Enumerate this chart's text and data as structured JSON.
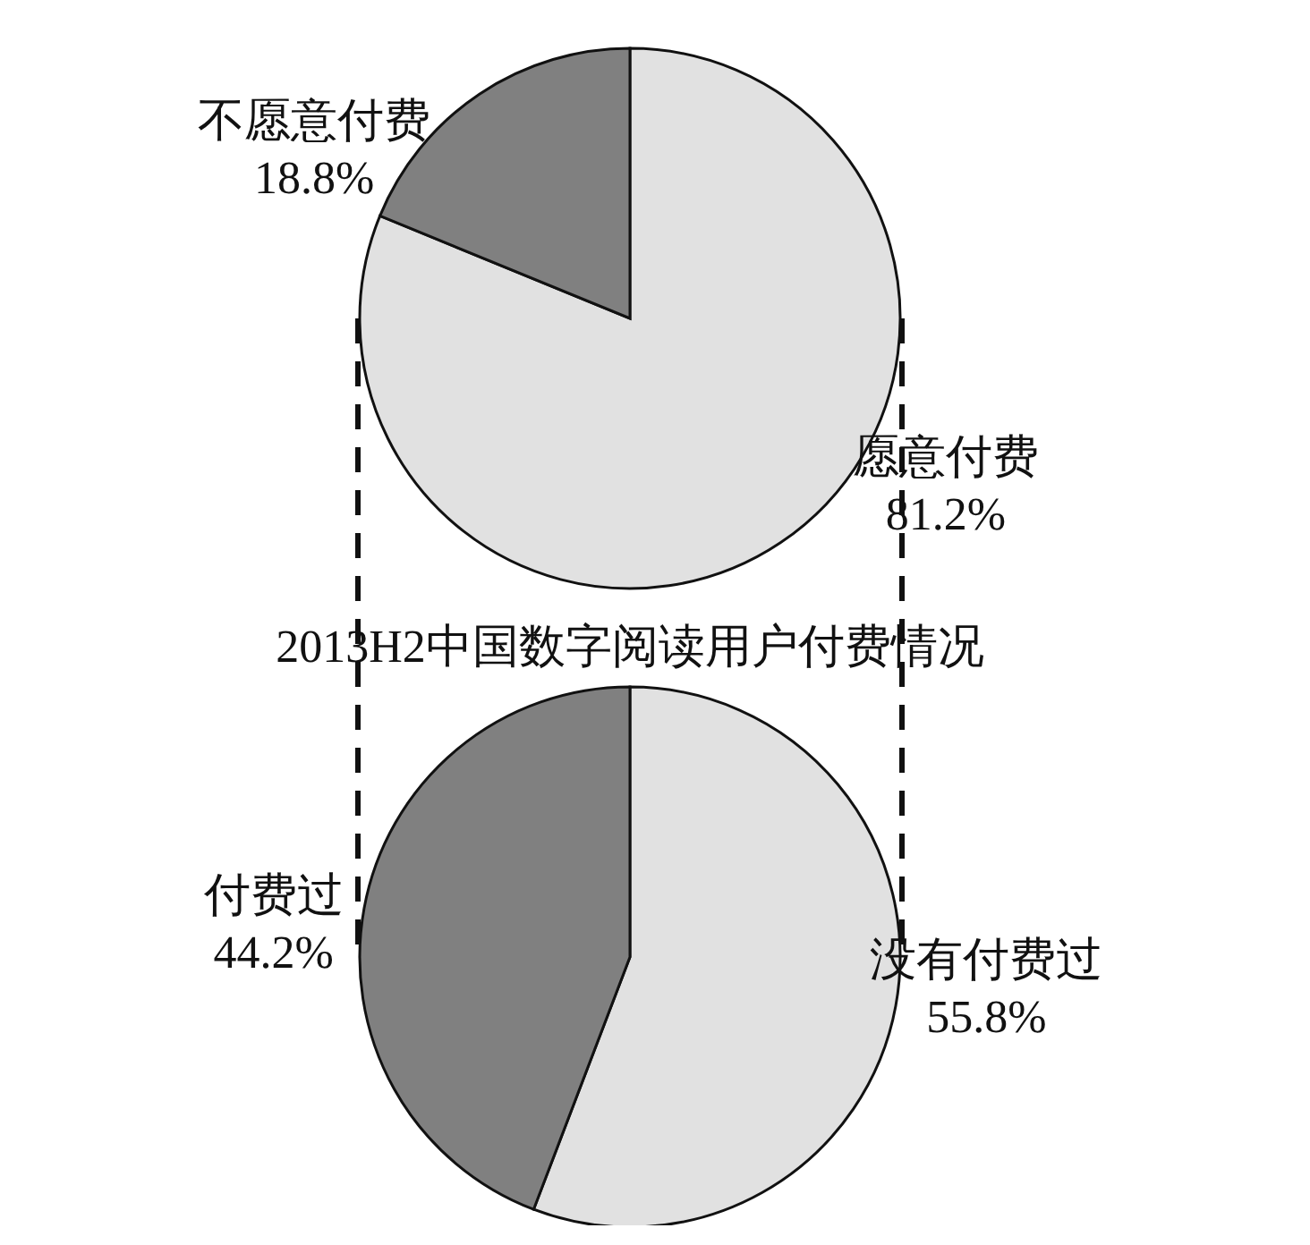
{
  "chart_data": [
    {
      "type": "pie",
      "categories": [
        "愿意付费",
        "不愿意付费"
      ],
      "values": [
        81.2,
        18.8
      ],
      "colors": [
        "#e1e1e1",
        "#808080"
      ],
      "value_labels": [
        "81.2%",
        "18.8%"
      ]
    },
    {
      "type": "pie",
      "title": "2013H2中国数字阅读用户付费情况",
      "categories": [
        "没有付费过",
        "付费过"
      ],
      "values": [
        55.8,
        44.2
      ],
      "colors": [
        "#e1e1e1",
        "#808080"
      ],
      "value_labels": [
        "55.8%",
        "44.2%"
      ]
    }
  ]
}
